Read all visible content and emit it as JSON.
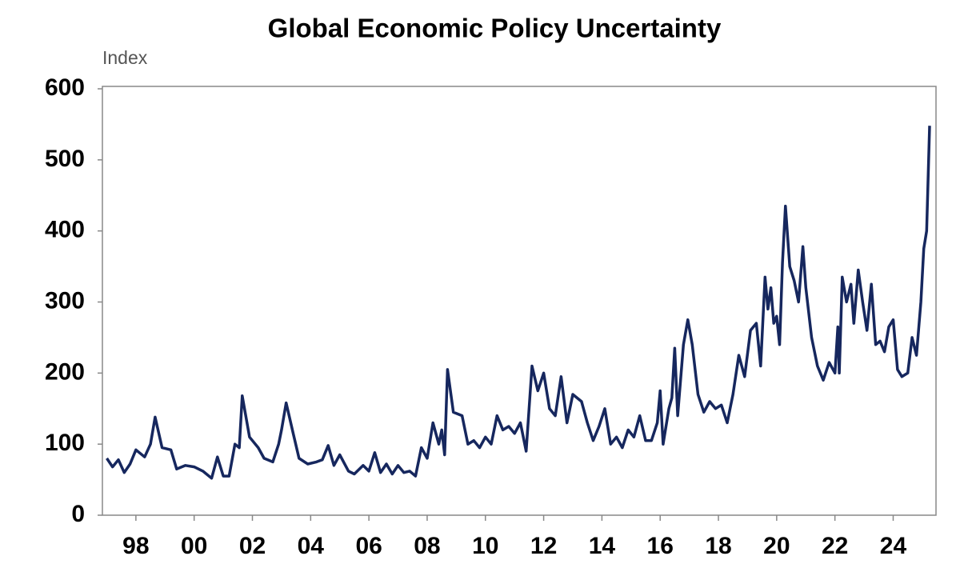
{
  "chart_data": {
    "type": "line",
    "title": "Global Economic Policy Uncertainty",
    "y_label": "Index",
    "color": "#16275e",
    "x": [
      1997.0,
      1997.2,
      1997.4,
      1997.6,
      1997.8,
      1998.0,
      1998.3,
      1998.5,
      1998.66,
      1998.9,
      1999.2,
      1999.4,
      1999.7,
      2000.0,
      2000.3,
      2000.6,
      2000.8,
      2001.0,
      2001.2,
      2001.4,
      2001.55,
      2001.65,
      2001.9,
      2002.2,
      2002.4,
      2002.7,
      2002.9,
      2003.0,
      2003.16,
      2003.4,
      2003.6,
      2003.9,
      2004.2,
      2004.4,
      2004.6,
      2004.8,
      2005.0,
      2005.3,
      2005.5,
      2005.8,
      2006.0,
      2006.2,
      2006.4,
      2006.6,
      2006.8,
      2007.0,
      2007.2,
      2007.4,
      2007.6,
      2007.8,
      2008.0,
      2008.2,
      2008.4,
      2008.5,
      2008.6,
      2008.7,
      2008.9,
      2009.2,
      2009.4,
      2009.6,
      2009.8,
      2010.0,
      2010.2,
      2010.4,
      2010.6,
      2010.8,
      2011.0,
      2011.2,
      2011.4,
      2011.6,
      2011.8,
      2012.0,
      2012.2,
      2012.4,
      2012.6,
      2012.8,
      2013.0,
      2013.3,
      2013.5,
      2013.7,
      2013.9,
      2014.1,
      2014.3,
      2014.5,
      2014.7,
      2014.9,
      2015.1,
      2015.3,
      2015.5,
      2015.7,
      2015.9,
      2016.0,
      2016.1,
      2016.3,
      2016.4,
      2016.5,
      2016.6,
      2016.8,
      2016.95,
      2017.1,
      2017.3,
      2017.5,
      2017.7,
      2017.9,
      2018.1,
      2018.3,
      2018.5,
      2018.7,
      2018.9,
      2019.1,
      2019.3,
      2019.45,
      2019.6,
      2019.7,
      2019.8,
      2019.9,
      2020.0,
      2020.1,
      2020.2,
      2020.3,
      2020.45,
      2020.6,
      2020.75,
      2020.9,
      2021.0,
      2021.2,
      2021.4,
      2021.6,
      2021.8,
      2022.0,
      2022.1,
      2022.15,
      2022.25,
      2022.4,
      2022.55,
      2022.65,
      2022.8,
      2022.95,
      2023.1,
      2023.25,
      2023.4,
      2023.55,
      2023.7,
      2023.85,
      2024.0,
      2024.15,
      2024.3,
      2024.5,
      2024.65,
      2024.8,
      2024.95,
      2025.05,
      2025.15,
      2025.25
    ],
    "values": [
      80,
      68,
      78,
      60,
      72,
      92,
      82,
      100,
      138,
      95,
      92,
      65,
      70,
      68,
      62,
      52,
      82,
      55,
      55,
      100,
      95,
      168,
      110,
      95,
      80,
      75,
      100,
      120,
      158,
      115,
      80,
      72,
      75,
      78,
      98,
      70,
      85,
      62,
      58,
      70,
      62,
      88,
      60,
      72,
      58,
      70,
      60,
      62,
      55,
      95,
      80,
      130,
      100,
      120,
      85,
      205,
      145,
      140,
      100,
      105,
      95,
      110,
      100,
      140,
      120,
      125,
      115,
      130,
      90,
      210,
      175,
      200,
      150,
      140,
      195,
      130,
      170,
      160,
      130,
      105,
      125,
      150,
      100,
      110,
      95,
      120,
      110,
      140,
      105,
      105,
      130,
      175,
      100,
      150,
      165,
      235,
      140,
      240,
      275,
      240,
      170,
      145,
      160,
      150,
      155,
      130,
      170,
      225,
      195,
      260,
      270,
      210,
      335,
      290,
      320,
      270,
      280,
      240,
      355,
      435,
      350,
      330,
      300,
      378,
      320,
      250,
      210,
      190,
      215,
      200,
      265,
      200,
      335,
      300,
      325,
      270,
      345,
      300,
      260,
      325,
      240,
      245,
      230,
      265,
      275,
      205,
      195,
      200,
      250,
      225,
      300,
      375,
      400,
      548
    ],
    "xlim": [
      1996.85,
      2025.47
    ],
    "xticks": [
      {
        "value": 1998,
        "label": "98"
      },
      {
        "value": 2000,
        "label": "00"
      },
      {
        "value": 2002,
        "label": "02"
      },
      {
        "value": 2004,
        "label": "04"
      },
      {
        "value": 2006,
        "label": "06"
      },
      {
        "value": 2008,
        "label": "08"
      },
      {
        "value": 2010,
        "label": "10"
      },
      {
        "value": 2012,
        "label": "12"
      },
      {
        "value": 2014,
        "label": "14"
      },
      {
        "value": 2016,
        "label": "16"
      },
      {
        "value": 2018,
        "label": "18"
      },
      {
        "value": 2020,
        "label": "20"
      },
      {
        "value": 2022,
        "label": "22"
      },
      {
        "value": 2024,
        "label": "24"
      }
    ],
    "ylim": [
      0,
      600
    ],
    "yticks": [
      0,
      100,
      200,
      300,
      400,
      500,
      600
    ],
    "grid": false
  }
}
